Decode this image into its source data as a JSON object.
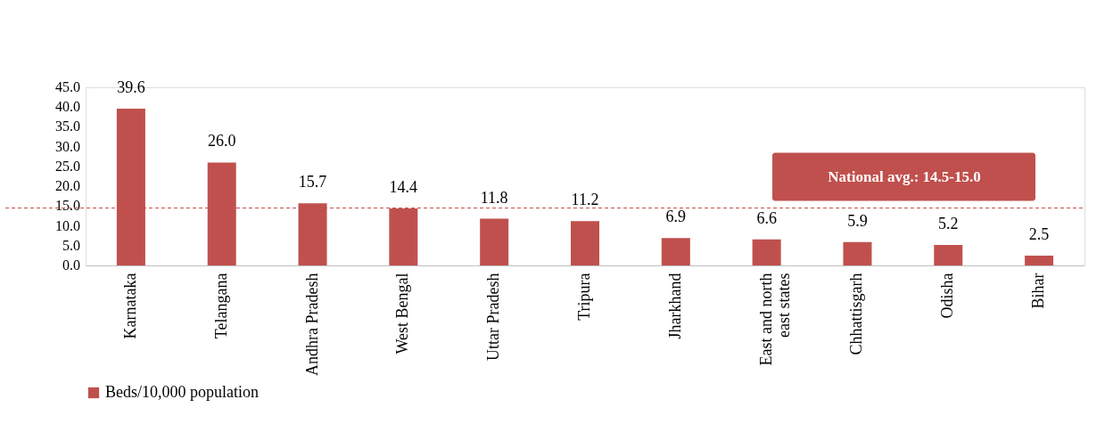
{
  "chart_data": {
    "type": "bar",
    "categories": [
      "Karnataka",
      "Telangana",
      "Andhra Pradesh",
      "West Bengal",
      "Uttar Pradesh",
      "Tripura",
      "Jharkhand",
      "East and north east states",
      "Chhattisgarh",
      "Odisha",
      "Bihar"
    ],
    "series": [
      {
        "name": "Beds/10,000 population",
        "color": "#c0504d",
        "values": [
          39.6,
          26.0,
          15.7,
          14.4,
          11.8,
          11.2,
          6.9,
          6.6,
          5.9,
          5.2,
          2.5
        ],
        "value_labels": [
          "39.6",
          "26.0",
          "15.7",
          "14.4",
          "11.8",
          "11.2",
          "6.9",
          "6.6",
          "5.9",
          "5.2",
          "2.5"
        ]
      }
    ],
    "ylim": [
      0,
      45
    ],
    "yticks": [
      {
        "value": 0,
        "label": "0.0"
      },
      {
        "value": 5,
        "label": "5.0"
      },
      {
        "value": 10,
        "label": "10.0"
      },
      {
        "value": 15,
        "label": "15.0"
      },
      {
        "value": 20,
        "label": "20.0"
      },
      {
        "value": 25,
        "label": "25.0"
      },
      {
        "value": 30,
        "label": "30.0"
      },
      {
        "value": 35,
        "label": "35.0"
      },
      {
        "value": 40,
        "label": "40.0"
      },
      {
        "value": 45,
        "label": "45.0"
      }
    ],
    "ref_lines": [
      {
        "axis": "y",
        "value": 14.5,
        "label": "National avg.: 14.5-15.0",
        "color": "#c0504d",
        "line_style": "dashed"
      }
    ],
    "grid": false,
    "legend": "bottom"
  }
}
